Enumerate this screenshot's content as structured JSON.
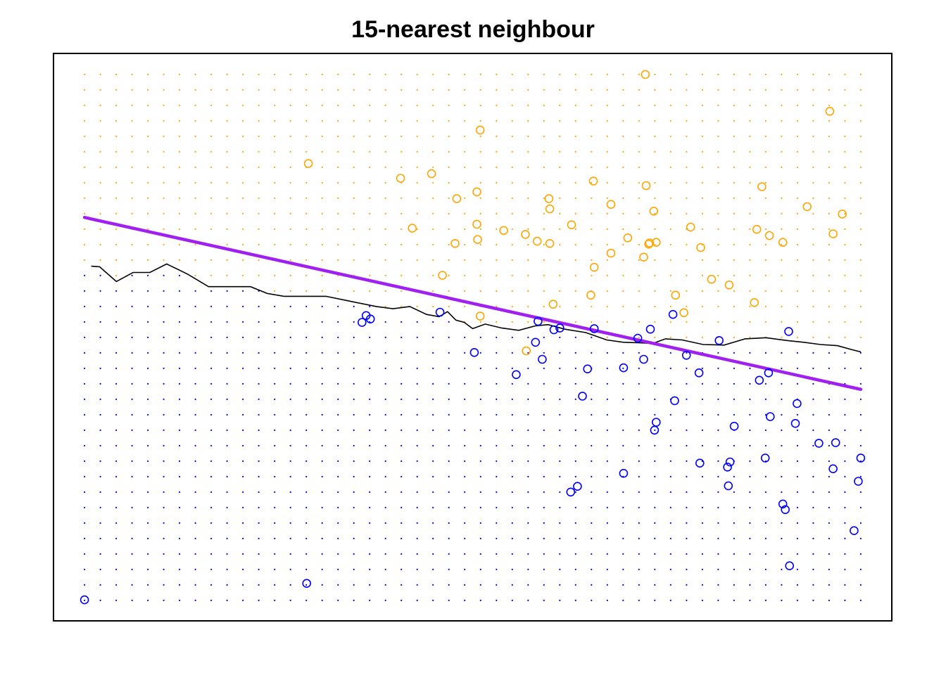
{
  "chart_data": {
    "type": "scatter",
    "title": "15-nearest neighbour",
    "xlabel": "",
    "ylabel": "",
    "xlim": [
      0,
      1
    ],
    "ylim": [
      0,
      1
    ],
    "axes_visible": false,
    "grid": false,
    "legend": "none",
    "colors": {
      "class_orange": "#FFA500",
      "class_blue": "#0000FF",
      "linear_boundary": "#A020F0",
      "knn_boundary": "#000000"
    },
    "background_grid": {
      "description_of_classes": [
        "orange",
        "blue"
      ],
      "nx": 50,
      "ny": 35,
      "x_range": [
        0.037,
        0.963
      ],
      "y_range": [
        0.036,
        0.963
      ]
    },
    "series": [
      {
        "class": "orange",
        "x": [
          0.706,
          0.926,
          0.509,
          0.304,
          0.451,
          0.414,
          0.481,
          0.592,
          0.591,
          0.644,
          0.707,
          0.665,
          0.577,
          0.704,
          0.899,
          0.845,
          0.93,
          0.87,
          0.785,
          0.537,
          0.618,
          0.505,
          0.563,
          0.596,
          0.641,
          0.685,
          0.71,
          0.719,
          0.665,
          0.592,
          0.506,
          0.505,
          0.76,
          0.716,
          0.711,
          0.645,
          0.806,
          0.752,
          0.836,
          0.742,
          0.772,
          0.839,
          0.854,
          0.941,
          0.479,
          0.428,
          0.464,
          0.564,
          0.509
        ],
        "y": [
          0.963,
          0.898,
          0.865,
          0.806,
          0.788,
          0.78,
          0.744,
          0.726,
          0.744,
          0.775,
          0.767,
          0.734,
          0.669,
          0.641,
          0.73,
          0.765,
          0.682,
          0.667,
          0.602,
          0.688,
          0.698,
          0.756,
          0.681,
          0.558,
          0.574,
          0.675,
          0.664,
          0.667,
          0.648,
          0.665,
          0.672,
          0.699,
          0.694,
          0.722,
          0.666,
          0.623,
          0.592,
          0.543,
          0.561,
          0.574,
          0.658,
          0.69,
          0.679,
          0.717,
          0.665,
          0.692,
          0.609,
          0.476,
          0.537
        ]
      },
      {
        "class": "blue",
        "x": [
          0.037,
          0.302,
          0.368,
          0.373,
          0.378,
          0.461,
          0.502,
          0.552,
          0.583,
          0.604,
          0.597,
          0.631,
          0.68,
          0.637,
          0.575,
          0.578,
          0.645,
          0.697,
          0.712,
          0.704,
          0.741,
          0.771,
          0.719,
          0.717,
          0.617,
          0.625,
          0.68,
          0.812,
          0.807,
          0.805,
          0.804,
          0.849,
          0.87,
          0.873,
          0.878,
          0.913,
          0.96,
          0.955,
          0.93,
          0.885,
          0.887,
          0.933,
          0.963,
          0.855,
          0.842,
          0.77,
          0.755,
          0.739,
          0.794,
          0.853,
          0.877
        ],
        "y": [
          0.037,
          0.066,
          0.526,
          0.538,
          0.532,
          0.544,
          0.473,
          0.434,
          0.461,
          0.516,
          0.513,
          0.396,
          0.446,
          0.444,
          0.491,
          0.528,
          0.515,
          0.498,
          0.514,
          0.461,
          0.388,
          0.278,
          0.35,
          0.336,
          0.227,
          0.237,
          0.26,
          0.343,
          0.28,
          0.238,
          0.271,
          0.287,
          0.206,
          0.196,
          0.097,
          0.313,
          0.246,
          0.159,
          0.268,
          0.348,
          0.383,
          0.314,
          0.287,
          0.36,
          0.424,
          0.437,
          0.468,
          0.54,
          0.494,
          0.437,
          0.51
        ]
      }
    ],
    "linear_boundary": {
      "x": [
        0.037,
        0.963
      ],
      "y": [
        0.711,
        0.408
      ]
    },
    "knn_boundary": {
      "x": [
        0.045,
        0.055,
        0.075,
        0.095,
        0.115,
        0.135,
        0.16,
        0.185,
        0.21,
        0.235,
        0.255,
        0.275,
        0.3,
        0.325,
        0.355,
        0.385,
        0.405,
        0.425,
        0.445,
        0.46,
        0.47,
        0.48,
        0.49,
        0.5,
        0.515,
        0.535,
        0.555,
        0.575,
        0.59,
        0.61,
        0.635,
        0.66,
        0.68,
        0.7,
        0.715,
        0.73,
        0.75,
        0.775,
        0.8,
        0.825,
        0.85,
        0.875,
        0.895,
        0.915,
        0.935,
        0.955,
        0.963
      ],
      "y": [
        0.625,
        0.624,
        0.598,
        0.614,
        0.614,
        0.629,
        0.611,
        0.589,
        0.589,
        0.589,
        0.577,
        0.572,
        0.572,
        0.572,
        0.563,
        0.554,
        0.55,
        0.554,
        0.54,
        0.536,
        0.545,
        0.53,
        0.526,
        0.515,
        0.523,
        0.516,
        0.512,
        0.52,
        0.522,
        0.514,
        0.508,
        0.495,
        0.491,
        0.49,
        0.489,
        0.497,
        0.495,
        0.487,
        0.486,
        0.497,
        0.499,
        0.494,
        0.491,
        0.487,
        0.485,
        0.477,
        0.474
      ]
    }
  }
}
